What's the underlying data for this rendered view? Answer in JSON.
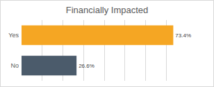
{
  "chart_data": {
    "type": "bar",
    "orientation": "horizontal",
    "title": "Financially Impacted",
    "categories": [
      "Yes",
      "No"
    ],
    "values": [
      73.4,
      26.6
    ],
    "value_labels": [
      "73.4%",
      "26.6%"
    ],
    "colors": [
      "#F5A623",
      "#4B5B6B"
    ],
    "xlim": [
      0,
      80
    ],
    "xticks": [
      0,
      10,
      20,
      30,
      40,
      50,
      60,
      70,
      80
    ],
    "grid": true,
    "data_labels": true,
    "tick_labels": "y"
  }
}
